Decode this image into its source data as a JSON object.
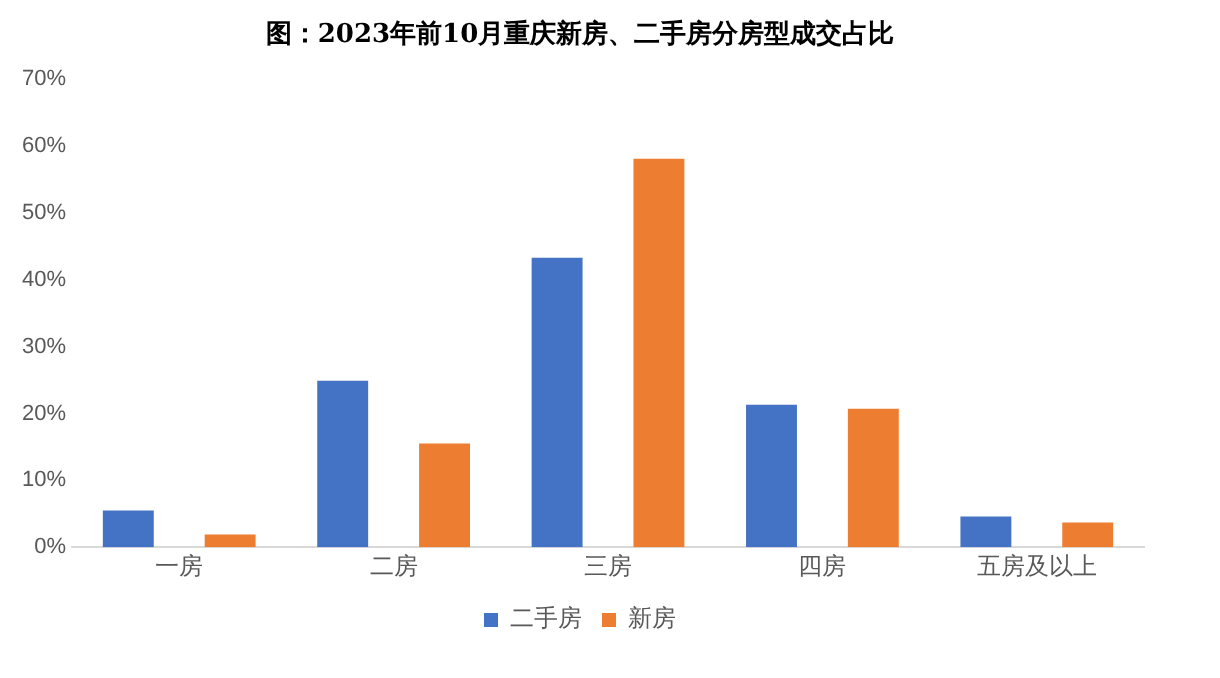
{
  "chart_data": {
    "type": "bar",
    "title": "图：2023年前10月重庆新房、二手房分房型成交占比",
    "categories": [
      "一房",
      "二房",
      "三房",
      "四房",
      "五房及以上"
    ],
    "series": [
      {
        "name": "二手房",
        "color": "#4472c4",
        "values": [
          5.5,
          24.9,
          43.3,
          21.3,
          4.6
        ]
      },
      {
        "name": "新房",
        "color": "#ed7d31",
        "values": [
          1.9,
          15.5,
          58.1,
          20.7,
          3.7
        ]
      }
    ],
    "ylim": [
      0,
      70
    ],
    "yticks": [
      {
        "value": 0,
        "label": "0%"
      },
      {
        "value": 10,
        "label": "10%"
      },
      {
        "value": 20,
        "label": "20%"
      },
      {
        "value": 30,
        "label": "30%"
      },
      {
        "value": 40,
        "label": "40%"
      },
      {
        "value": 50,
        "label": "50%"
      },
      {
        "value": 60,
        "label": "60%"
      },
      {
        "value": 70,
        "label": "70%"
      }
    ],
    "grid": false,
    "legend": "bottom"
  }
}
